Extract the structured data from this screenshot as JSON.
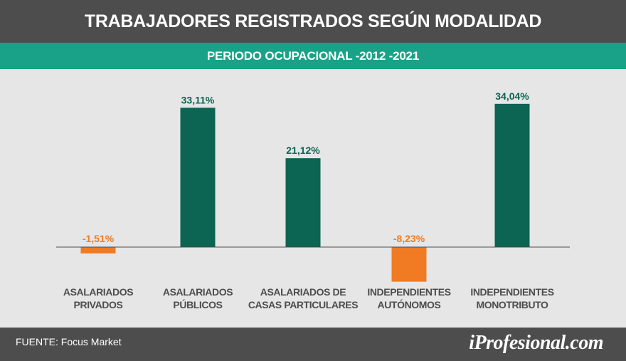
{
  "header": {
    "title": "TRABAJADORES REGISTRADOS SEGÚN MODALIDAD",
    "subtitle": "PERIODO OCUPACIONAL -2012 -2021"
  },
  "footer": {
    "source": "FUENTE: Focus Market",
    "logo": "iProfesional.com"
  },
  "colors": {
    "positive": "#0c6452",
    "negative": "#f07b22",
    "band": "#19a287",
    "background": "#4d4d4d",
    "plot": "#e6e6e7"
  },
  "chart_data": {
    "type": "bar",
    "title": "TRABAJADORES REGISTRADOS SEGÚN MODALIDAD",
    "subtitle": "PERIODO OCUPACIONAL -2012 -2021",
    "categories": [
      [
        "ASALARIADOS",
        "PRIVADOS"
      ],
      [
        "ASALARIADOS",
        "PÚBLICOS"
      ],
      [
        "ASALARIADOS DE",
        "CASAS PARTICULARES"
      ],
      [
        "INDEPENDIENTES",
        "AUTÓNOMOS"
      ],
      [
        "INDEPENDIENTES",
        "MONOTRIBUTO"
      ]
    ],
    "values": [
      -1.51,
      33.11,
      21.12,
      -8.23,
      34.04
    ],
    "labels": [
      "-1,51%",
      "33,11%",
      "21,12%",
      "-8,23%",
      "34,04%"
    ],
    "unit": "%",
    "ylim": [
      -10,
      35
    ],
    "grid": false,
    "legend": "none"
  }
}
